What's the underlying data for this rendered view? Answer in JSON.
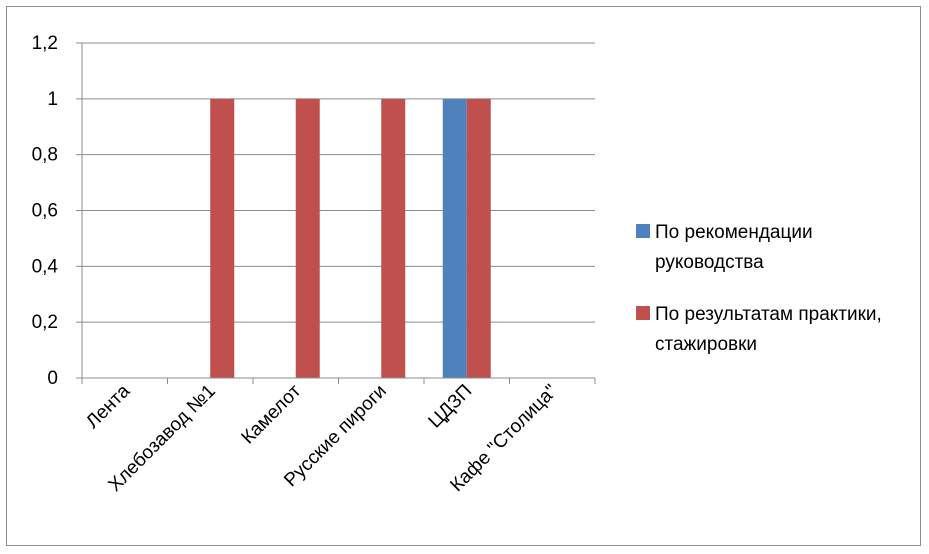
{
  "chart_data": {
    "type": "bar",
    "categories": [
      "Лента",
      "Хлебозавод №1",
      "Камелот",
      "Русские пироги",
      "ЦДЗП",
      "Кафе \"Столица\""
    ],
    "series": [
      {
        "name": "По рекомендации руководства",
        "values": [
          0,
          0,
          0,
          0,
          1,
          0
        ],
        "color": "#4f81bd"
      },
      {
        "name": "По результатам практики, стажировки",
        "values": [
          0,
          1,
          1,
          1,
          1,
          0
        ],
        "color": "#c0504d"
      }
    ],
    "y_ticks": [
      "0",
      "0,2",
      "0,4",
      "0,6",
      "0,8",
      "1",
      "1,2"
    ],
    "ylim": [
      0,
      1.2
    ],
    "grid": true,
    "legend": "right"
  }
}
